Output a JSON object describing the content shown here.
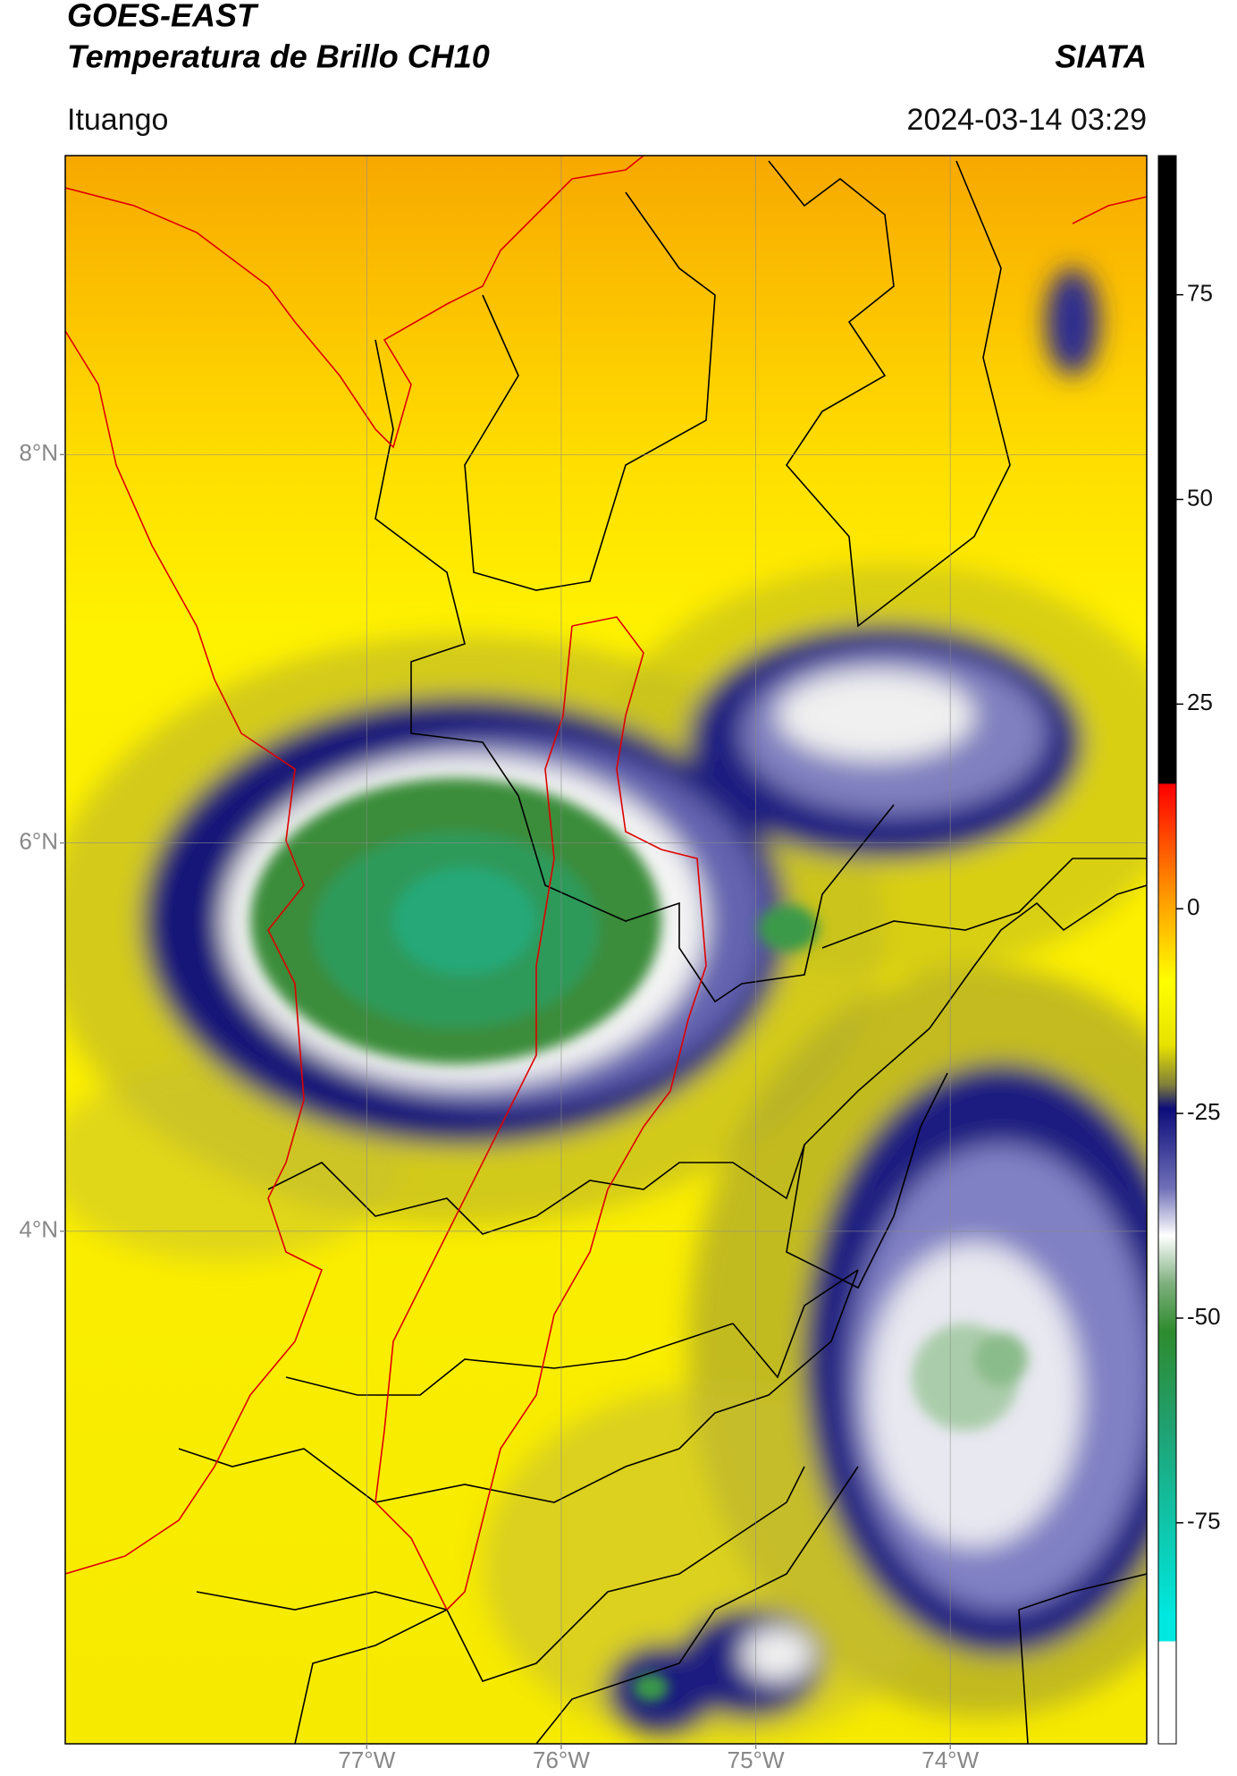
{
  "header": {
    "source": "GOES-EAST",
    "product": "Temperatura de Brillo CH10",
    "agency": "SIATA",
    "region": "Ituango",
    "timestamp": "2024-03-14 03:29"
  },
  "map": {
    "xlim": [
      -78.55,
      -72.99
    ],
    "ylim": [
      1.36,
      9.54
    ],
    "xticks": [
      {
        "value": -77,
        "label": "77°W"
      },
      {
        "value": -76,
        "label": "76°W"
      },
      {
        "value": -75,
        "label": "75°W"
      },
      {
        "value": -74,
        "label": "74°W"
      }
    ],
    "yticks": [
      {
        "value": 8,
        "label": "8°N"
      },
      {
        "value": 6,
        "label": "6°N"
      },
      {
        "value": 4,
        "label": "4°N"
      }
    ],
    "grid": true
  },
  "colorbar": {
    "lim": [
      -102,
      92
    ],
    "ticks": [
      75,
      50,
      25,
      0,
      -25,
      -50,
      -75
    ]
  }
}
